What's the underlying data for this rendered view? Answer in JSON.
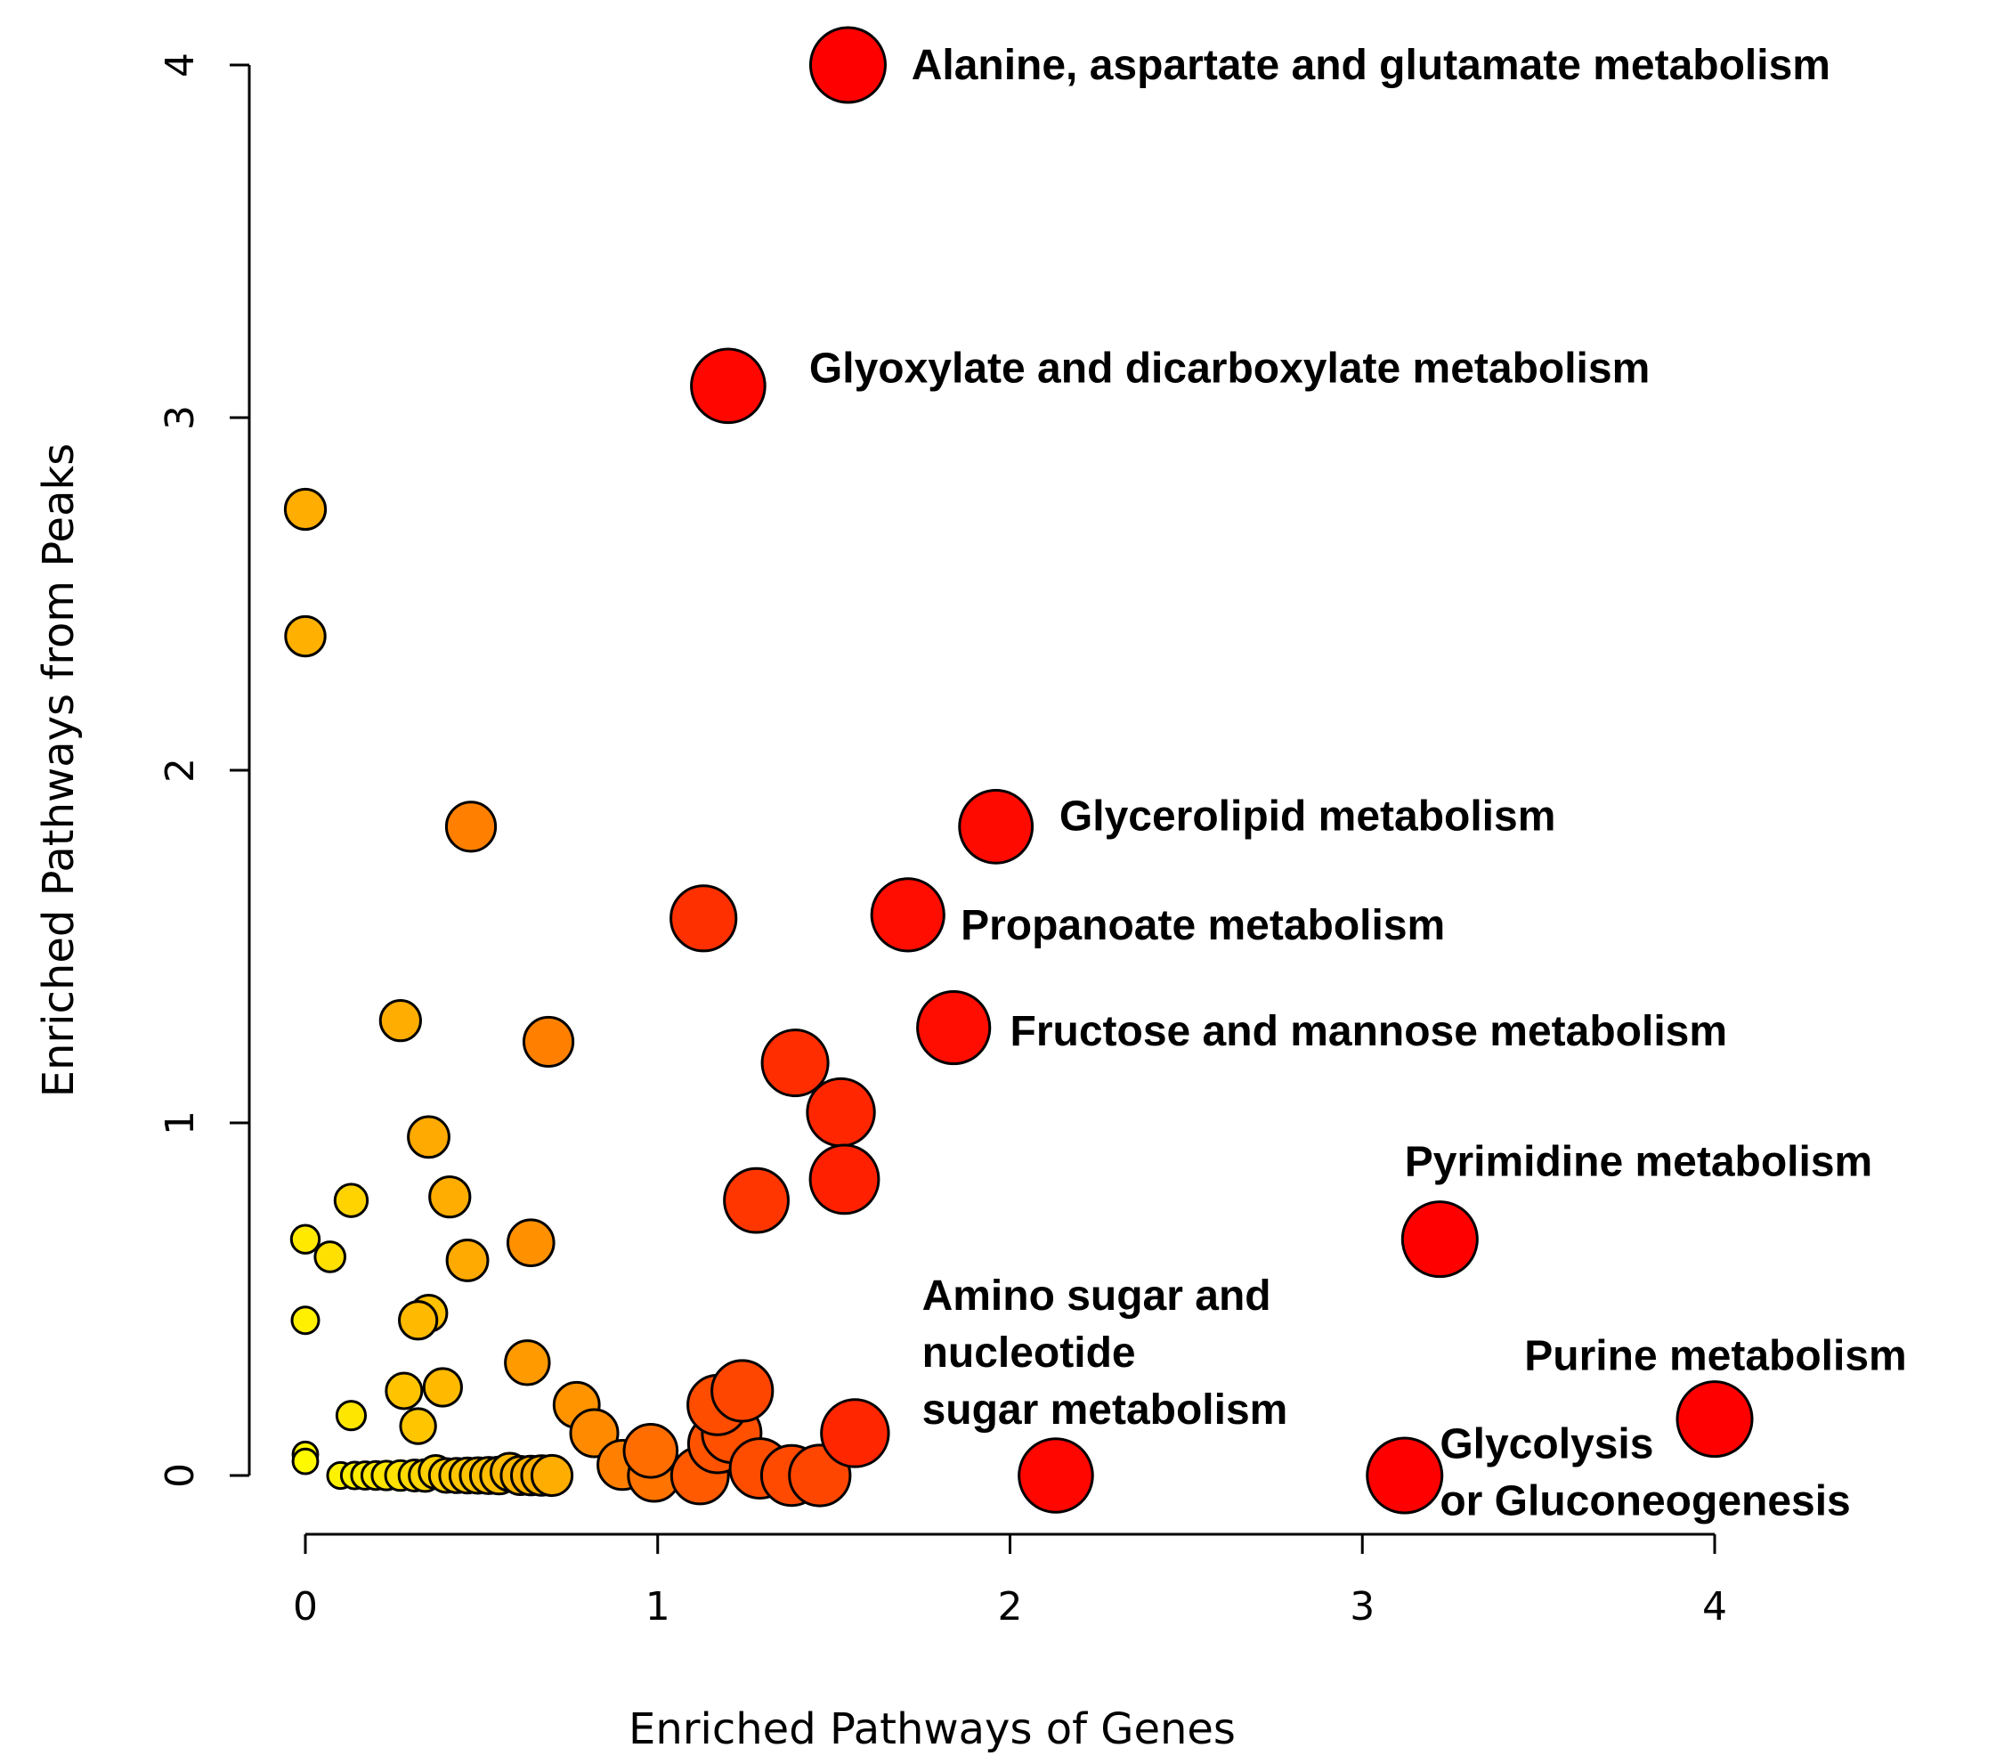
{
  "chart_data": {
    "type": "scatter",
    "title": "",
    "xlabel": "Enriched Pathways of Genes",
    "ylabel": "Enriched Pathways from Peaks",
    "xlim": [
      0,
      4
    ],
    "ylim": [
      0,
      4
    ],
    "xticks": [
      "0",
      "1",
      "2",
      "3",
      "4"
    ],
    "yticks": [
      "0",
      "1",
      "2",
      "3",
      "4"
    ],
    "grid": false,
    "legend": "none",
    "color_scale": [
      "#ffffcc",
      "#ffff00",
      "#ffc000",
      "#ff8000",
      "#ff4000",
      "#ff0000"
    ],
    "points": [
      {
        "x": 1.54,
        "y": 4.0,
        "size": 1.0
      },
      {
        "x": 1.2,
        "y": 3.09,
        "size": 0.98
      },
      {
        "x": 1.96,
        "y": 1.84,
        "size": 0.97
      },
      {
        "x": 1.71,
        "y": 1.59,
        "size": 0.96
      },
      {
        "x": 1.13,
        "y": 1.58,
        "size": 0.85
      },
      {
        "x": 1.84,
        "y": 1.27,
        "size": 0.96
      },
      {
        "x": 1.39,
        "y": 1.17,
        "size": 0.86
      },
      {
        "x": 1.52,
        "y": 1.03,
        "size": 0.88
      },
      {
        "x": 1.53,
        "y": 0.84,
        "size": 0.9
      },
      {
        "x": 1.28,
        "y": 0.78,
        "size": 0.83
      },
      {
        "x": 3.22,
        "y": 0.67,
        "size": 1.0
      },
      {
        "x": 4.0,
        "y": 0.16,
        "size": 1.0
      },
      {
        "x": 2.13,
        "y": 0.0,
        "size": 0.98
      },
      {
        "x": 3.12,
        "y": 0.0,
        "size": 1.0
      },
      {
        "x": 1.56,
        "y": 0.12,
        "size": 0.88
      },
      {
        "x": 1.24,
        "y": 0.24,
        "size": 0.78
      },
      {
        "x": 1.17,
        "y": 0.2,
        "size": 0.76
      },
      {
        "x": 1.21,
        "y": 0.12,
        "size": 0.75
      },
      {
        "x": 1.17,
        "y": 0.09,
        "size": 0.74
      },
      {
        "x": 1.29,
        "y": 0.02,
        "size": 0.76
      },
      {
        "x": 1.38,
        "y": 0.0,
        "size": 0.77
      },
      {
        "x": 1.46,
        "y": 0.0,
        "size": 0.78
      },
      {
        "x": 1.12,
        "y": 0.0,
        "size": 0.72
      },
      {
        "x": 0.98,
        "y": 0.07,
        "size": 0.66
      },
      {
        "x": 0.99,
        "y": 0.0,
        "size": 0.64
      },
      {
        "x": 0.9,
        "y": 0.03,
        "size": 0.6
      },
      {
        "x": 0.82,
        "y": 0.12,
        "size": 0.57
      },
      {
        "x": 0.77,
        "y": 0.2,
        "size": 0.54
      },
      {
        "x": 0.47,
        "y": 1.84,
        "size": 0.6
      },
      {
        "x": 0.69,
        "y": 1.23,
        "size": 0.6
      },
      {
        "x": 0.64,
        "y": 0.66,
        "size": 0.55
      },
      {
        "x": 0.63,
        "y": 0.32,
        "size": 0.52
      },
      {
        "x": 0.0,
        "y": 2.74,
        "size": 0.46
      },
      {
        "x": 0.0,
        "y": 2.38,
        "size": 0.45
      },
      {
        "x": 0.27,
        "y": 1.29,
        "size": 0.46
      },
      {
        "x": 0.35,
        "y": 0.96,
        "size": 0.47
      },
      {
        "x": 0.41,
        "y": 0.79,
        "size": 0.46
      },
      {
        "x": 0.46,
        "y": 0.61,
        "size": 0.47
      },
      {
        "x": 0.35,
        "y": 0.46,
        "size": 0.4
      },
      {
        "x": 0.32,
        "y": 0.44,
        "size": 0.42
      },
      {
        "x": 0.39,
        "y": 0.25,
        "size": 0.42
      },
      {
        "x": 0.28,
        "y": 0.24,
        "size": 0.39
      },
      {
        "x": 0.32,
        "y": 0.14,
        "size": 0.38
      },
      {
        "x": 0.13,
        "y": 0.78,
        "size": 0.34
      },
      {
        "x": 0.07,
        "y": 0.62,
        "size": 0.3
      },
      {
        "x": 0.0,
        "y": 0.67,
        "size": 0.27
      },
      {
        "x": 0.0,
        "y": 0.44,
        "size": 0.25
      },
      {
        "x": 0.13,
        "y": 0.17,
        "size": 0.28
      },
      {
        "x": 0.0,
        "y": 0.06,
        "size": 0.22
      },
      {
        "x": 0.0,
        "y": 0.04,
        "size": 0.22
      },
      {
        "x": 0.1,
        "y": 0.0,
        "size": 0.24
      },
      {
        "x": 0.14,
        "y": 0.0,
        "size": 0.25
      },
      {
        "x": 0.17,
        "y": 0.0,
        "size": 0.26
      },
      {
        "x": 0.2,
        "y": 0.0,
        "size": 0.27
      },
      {
        "x": 0.23,
        "y": 0.0,
        "size": 0.28
      },
      {
        "x": 0.27,
        "y": 0.0,
        "size": 0.3
      },
      {
        "x": 0.31,
        "y": 0.0,
        "size": 0.32
      },
      {
        "x": 0.34,
        "y": 0.0,
        "size": 0.33
      },
      {
        "x": 0.37,
        "y": 0.01,
        "size": 0.35
      },
      {
        "x": 0.4,
        "y": 0.0,
        "size": 0.36
      },
      {
        "x": 0.43,
        "y": 0.0,
        "size": 0.37
      },
      {
        "x": 0.46,
        "y": 0.0,
        "size": 0.38
      },
      {
        "x": 0.49,
        "y": 0.0,
        "size": 0.39
      },
      {
        "x": 0.52,
        "y": 0.0,
        "size": 0.4
      },
      {
        "x": 0.55,
        "y": 0.0,
        "size": 0.41
      },
      {
        "x": 0.58,
        "y": 0.01,
        "size": 0.42
      },
      {
        "x": 0.61,
        "y": 0.0,
        "size": 0.43
      },
      {
        "x": 0.64,
        "y": 0.0,
        "size": 0.44
      },
      {
        "x": 0.67,
        "y": 0.0,
        "size": 0.45
      },
      {
        "x": 0.7,
        "y": 0.0,
        "size": 0.46
      }
    ],
    "annotations": [
      {
        "lines": [
          "Alanine, aspartate and glutamate metabolism"
        ],
        "x": 1.72,
        "y": 4.0,
        "anchor": "start"
      },
      {
        "lines": [
          "Glyoxylate and dicarboxylate metabolism"
        ],
        "x": 1.43,
        "y": 3.14,
        "anchor": "start"
      },
      {
        "lines": [
          "Glycerolipid metabolism"
        ],
        "x": 2.14,
        "y": 1.87,
        "anchor": "start"
      },
      {
        "lines": [
          "Propanoate metabolism"
        ],
        "x": 1.86,
        "y": 1.56,
        "anchor": "start"
      },
      {
        "lines": [
          "Fructose and mannose metabolism"
        ],
        "x": 2.0,
        "y": 1.26,
        "anchor": "start"
      },
      {
        "lines": [
          "Pyrimidine metabolism"
        ],
        "x": 3.12,
        "y": 0.89,
        "anchor": "start"
      },
      {
        "lines": [
          "Amino sugar and",
          "nucleotide",
          "sugar metabolism"
        ],
        "x": 1.75,
        "y": 0.51,
        "anchor": "start"
      },
      {
        "lines": [
          "Purine metabolism"
        ],
        "x": 3.46,
        "y": 0.34,
        "anchor": "start"
      },
      {
        "lines": [
          "Glycolysis",
          "or  Gluconeogenesis"
        ],
        "x": 3.22,
        "y": 0.09,
        "anchor": "start"
      }
    ]
  }
}
